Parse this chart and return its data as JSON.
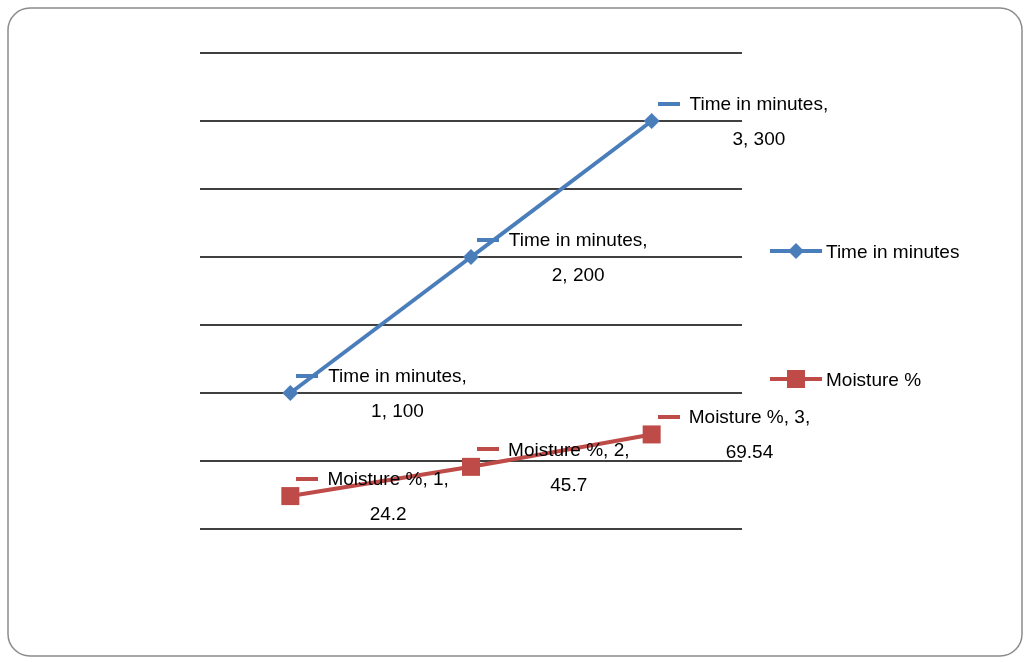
{
  "chart_data": {
    "type": "line",
    "categories": [
      null,
      null,
      null
    ],
    "series": [
      {
        "name": "Time in minutes",
        "color": "#4a7ebb",
        "marker": "diamond",
        "values": [
          100,
          200,
          300
        ],
        "value_labels": [
          "Time in minutes, 1, 100",
          "Time in minutes, 2, 200",
          "Time in minutes, 3, 300"
        ]
      },
      {
        "name": "Moisture %",
        "color": "#be4b48",
        "marker": "square",
        "values": [
          24.2,
          45.7,
          69.54
        ],
        "value_labels": [
          "Moisture %, 1, 24.2",
          "Moisture %, 2, 45.7",
          "Moisture %, 3, 69.54"
        ]
      }
    ],
    "grid": "y",
    "legend": "right",
    "line_style": "solid"
  }
}
